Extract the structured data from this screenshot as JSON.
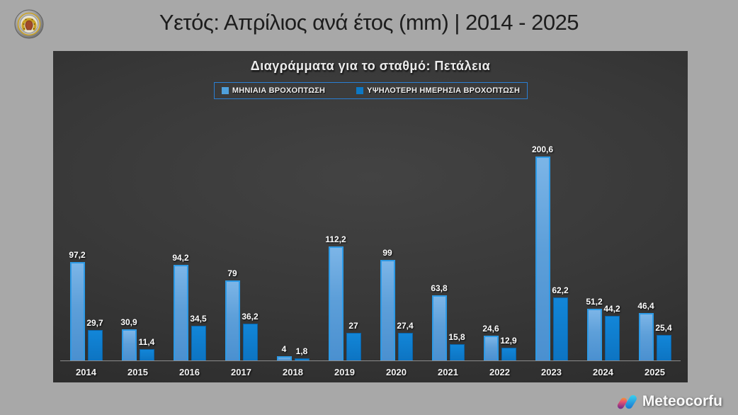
{
  "header": {
    "title": "Υετός: Απρίλιος ανά έτος (mm) | 2014 - 2025"
  },
  "chart": {
    "title": "Διαγράμματα για το σταθμό: Πετάλεια",
    "station": "Πετάλεια",
    "legend": [
      {
        "label": "ΜΗΝΙΑΙΑ ΒΡΟΧΟΠΤΩΣΗ",
        "color": "#4fa0dc"
      },
      {
        "label": "ΥΨΗΛΟΤΕΡΗ ΗΜΕΡΗΣΙΑ ΒΡΟΧΟΠΤΩΣΗ",
        "color": "#0d78c4"
      }
    ],
    "colors": {
      "panel_background": "#383838",
      "page_background": "#a8a8a8",
      "series_monthly": "#5b9bd5",
      "series_daily": "#0d79c6",
      "legend_border": "#2a7fd4",
      "label_text": "#ffffff"
    }
  },
  "chart_data": {
    "type": "bar",
    "title": "Διαγράμματα για το σταθμό: Πετάλεια",
    "categories": [
      "2014",
      "2015",
      "2016",
      "2017",
      "2018",
      "2019",
      "2020",
      "2021",
      "2022",
      "2023",
      "2024",
      "2025"
    ],
    "series": [
      {
        "name": "ΜΗΝΙΑΙΑ ΒΡΟΧΟΠΤΩΣΗ",
        "values": [
          97.2,
          30.9,
          94.2,
          79,
          4,
          112.2,
          99,
          63.8,
          24.6,
          200.6,
          51.2,
          46.4
        ],
        "labels": [
          "97,2",
          "30,9",
          "94,2",
          "79",
          "4",
          "112,2",
          "99",
          "63,8",
          "24,6",
          "200,6",
          "51,2",
          "46,4"
        ],
        "color": "#5b9bd5"
      },
      {
        "name": "ΥΨΗΛΟΤΕΡΗ ΗΜΕΡΗΣΙΑ ΒΡΟΧΟΠΤΩΣΗ",
        "values": [
          29.7,
          11.4,
          34.5,
          36.2,
          1.8,
          27,
          27.4,
          15.8,
          12.9,
          62.2,
          44.2,
          25.4
        ],
        "labels": [
          "29,7",
          "11,4",
          "34,5",
          "36,2",
          "1,8",
          "27",
          "27,4",
          "15,8",
          "12,9",
          "62,2",
          "44,2",
          "25,4"
        ],
        "color": "#0d79c6"
      }
    ],
    "xlabel": "",
    "ylabel": "",
    "ylim": [
      0,
      205
    ],
    "grid": false,
    "legend_position": "top",
    "value_labels_shown": true
  },
  "footer": {
    "brand": "Meteocorfu"
  }
}
